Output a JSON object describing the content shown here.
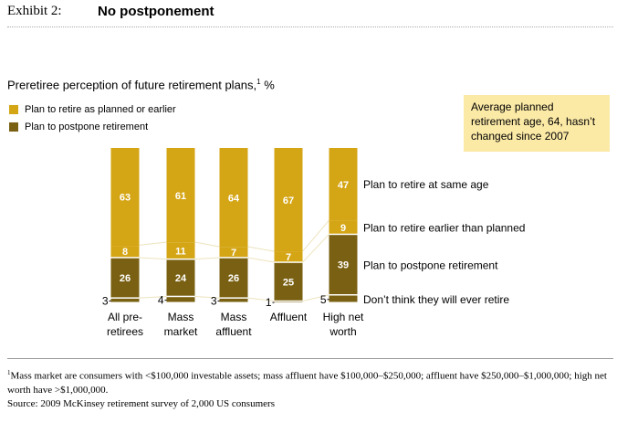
{
  "exhibit": {
    "label": "Exhibit 2:",
    "title": "No postponement"
  },
  "subtitle": {
    "text": "Preretiree perception of future retirement plans,",
    "sup": "1",
    "unit": "%"
  },
  "legend": [
    {
      "label": "Plan to retire as planned or earlier",
      "color": "#d4a514"
    },
    {
      "label": "Plan to postpone retirement",
      "color": "#7a6012"
    }
  ],
  "callout": {
    "text": "Average planned retirement age, 64, hasn’t changed since 2007"
  },
  "footnote": {
    "sup": "1",
    "text": "Mass market are consumers with <$100,000 investable assets; mass affluent have $100,000–$250,000; affluent have $250,000–$1,000,000; high net worth have >$1,000,000.",
    "source": "Source: 2009 McKinsey retirement survey of 2,000 US consumers"
  },
  "chart_data": {
    "type": "bar",
    "stacked": true,
    "categories": [
      [
        "All pre-",
        "retirees"
      ],
      [
        "Mass",
        "market"
      ],
      [
        "Mass",
        "affluent"
      ],
      [
        "Affluent"
      ],
      [
        "High net",
        "worth"
      ]
    ],
    "series": [
      {
        "name": "Don’t think they will ever retire",
        "values": [
          3,
          4,
          3,
          1,
          5
        ],
        "color": "#7a6012",
        "label_position": "outside-left"
      },
      {
        "name": "Plan to postpone retirement",
        "values": [
          26,
          24,
          26,
          25,
          39
        ],
        "color": "#7a6012"
      },
      {
        "name": "Plan to retire earlier than planned",
        "values": [
          8,
          11,
          7,
          7,
          9
        ],
        "color": "#d4a514"
      },
      {
        "name": "Plan to retire at same age",
        "values": [
          63,
          61,
          64,
          67,
          47
        ],
        "color": "#d4a514"
      }
    ],
    "ylim": [
      0,
      100
    ],
    "grid": false,
    "colors": {
      "light": "#d4a514",
      "dark": "#7a6012",
      "connector": "#ede3bd"
    }
  }
}
